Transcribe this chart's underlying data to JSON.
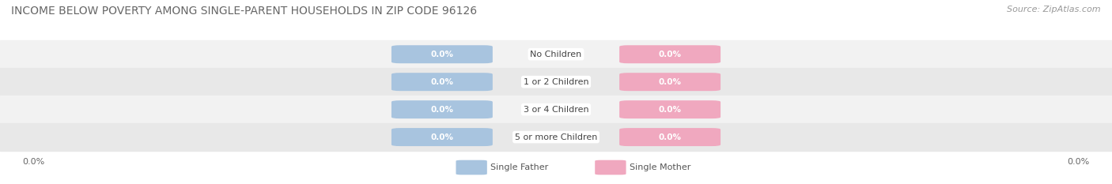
{
  "title": "INCOME BELOW POVERTY AMONG SINGLE-PARENT HOUSEHOLDS IN ZIP CODE 96126",
  "source": "Source: ZipAtlas.com",
  "categories": [
    "No Children",
    "1 or 2 Children",
    "3 or 4 Children",
    "5 or more Children"
  ],
  "father_values": [
    0.0,
    0.0,
    0.0,
    0.0
  ],
  "mother_values": [
    0.0,
    0.0,
    0.0,
    0.0
  ],
  "father_color": "#a8c4df",
  "mother_color": "#f0a8bf",
  "father_label": "Single Father",
  "mother_label": "Single Mother",
  "row_colors_even": "#f2f2f2",
  "row_colors_odd": "#e8e8e8",
  "xlim_left": "0.0%",
  "xlim_right": "0.0%",
  "title_fontsize": 10,
  "source_fontsize": 8,
  "label_fontsize": 7.5,
  "category_fontsize": 8,
  "tick_fontsize": 8,
  "background_color": "#ffffff"
}
